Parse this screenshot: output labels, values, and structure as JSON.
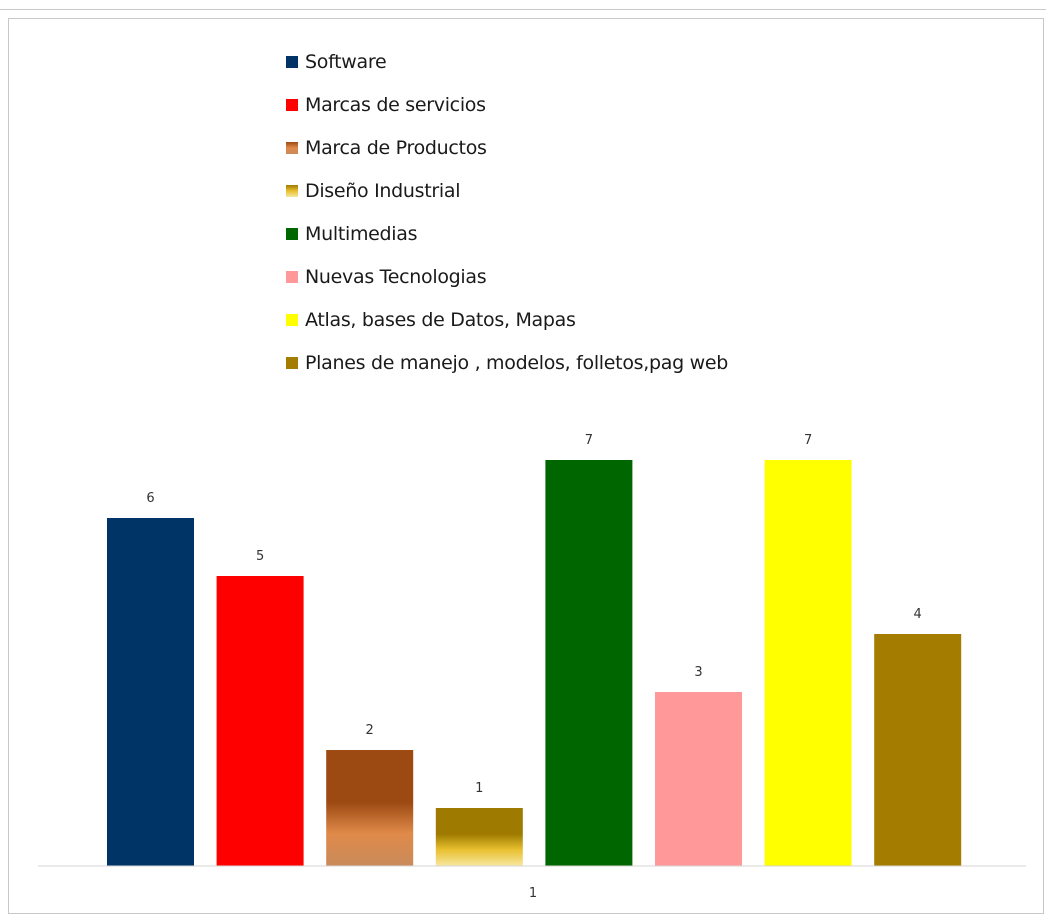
{
  "chart_data": {
    "type": "bar",
    "categories": [
      "1"
    ],
    "series": [
      {
        "name": "Software",
        "values": [
          6
        ],
        "color": "#003366"
      },
      {
        "name": "Marcas de servicios",
        "values": [
          5
        ],
        "color": "#ff0000"
      },
      {
        "name": "Marca de Productos",
        "values": [
          2
        ],
        "color": "#9c4a12",
        "gradient": [
          "#9c4a12",
          "#e08a4a",
          "#c98a5a"
        ]
      },
      {
        "name": "Diseño Industrial",
        "values": [
          1
        ],
        "color": "#9e7b00",
        "gradient": [
          "#9e7b00",
          "#e8c030",
          "#f7e7a0"
        ]
      },
      {
        "name": "Multimedias",
        "values": [
          7
        ],
        "color": "#006600"
      },
      {
        "name": "Nuevas Tecnologias",
        "values": [
          3
        ],
        "color": "#ff9999"
      },
      {
        "name": "Atlas, bases de Datos, Mapas",
        "values": [
          7
        ],
        "color": "#ffff00"
      },
      {
        "name": "Planes de manejo , modelos, folletos,pag web",
        "values": [
          4
        ],
        "color": "#a37c00"
      }
    ],
    "data_labels": [
      "6",
      "5",
      "2",
      "1",
      "7",
      "3",
      "7",
      "4"
    ],
    "ylim": [
      0,
      7
    ],
    "grid": false,
    "legend_position": "top",
    "title": "",
    "xlabel": "",
    "ylabel": ""
  }
}
